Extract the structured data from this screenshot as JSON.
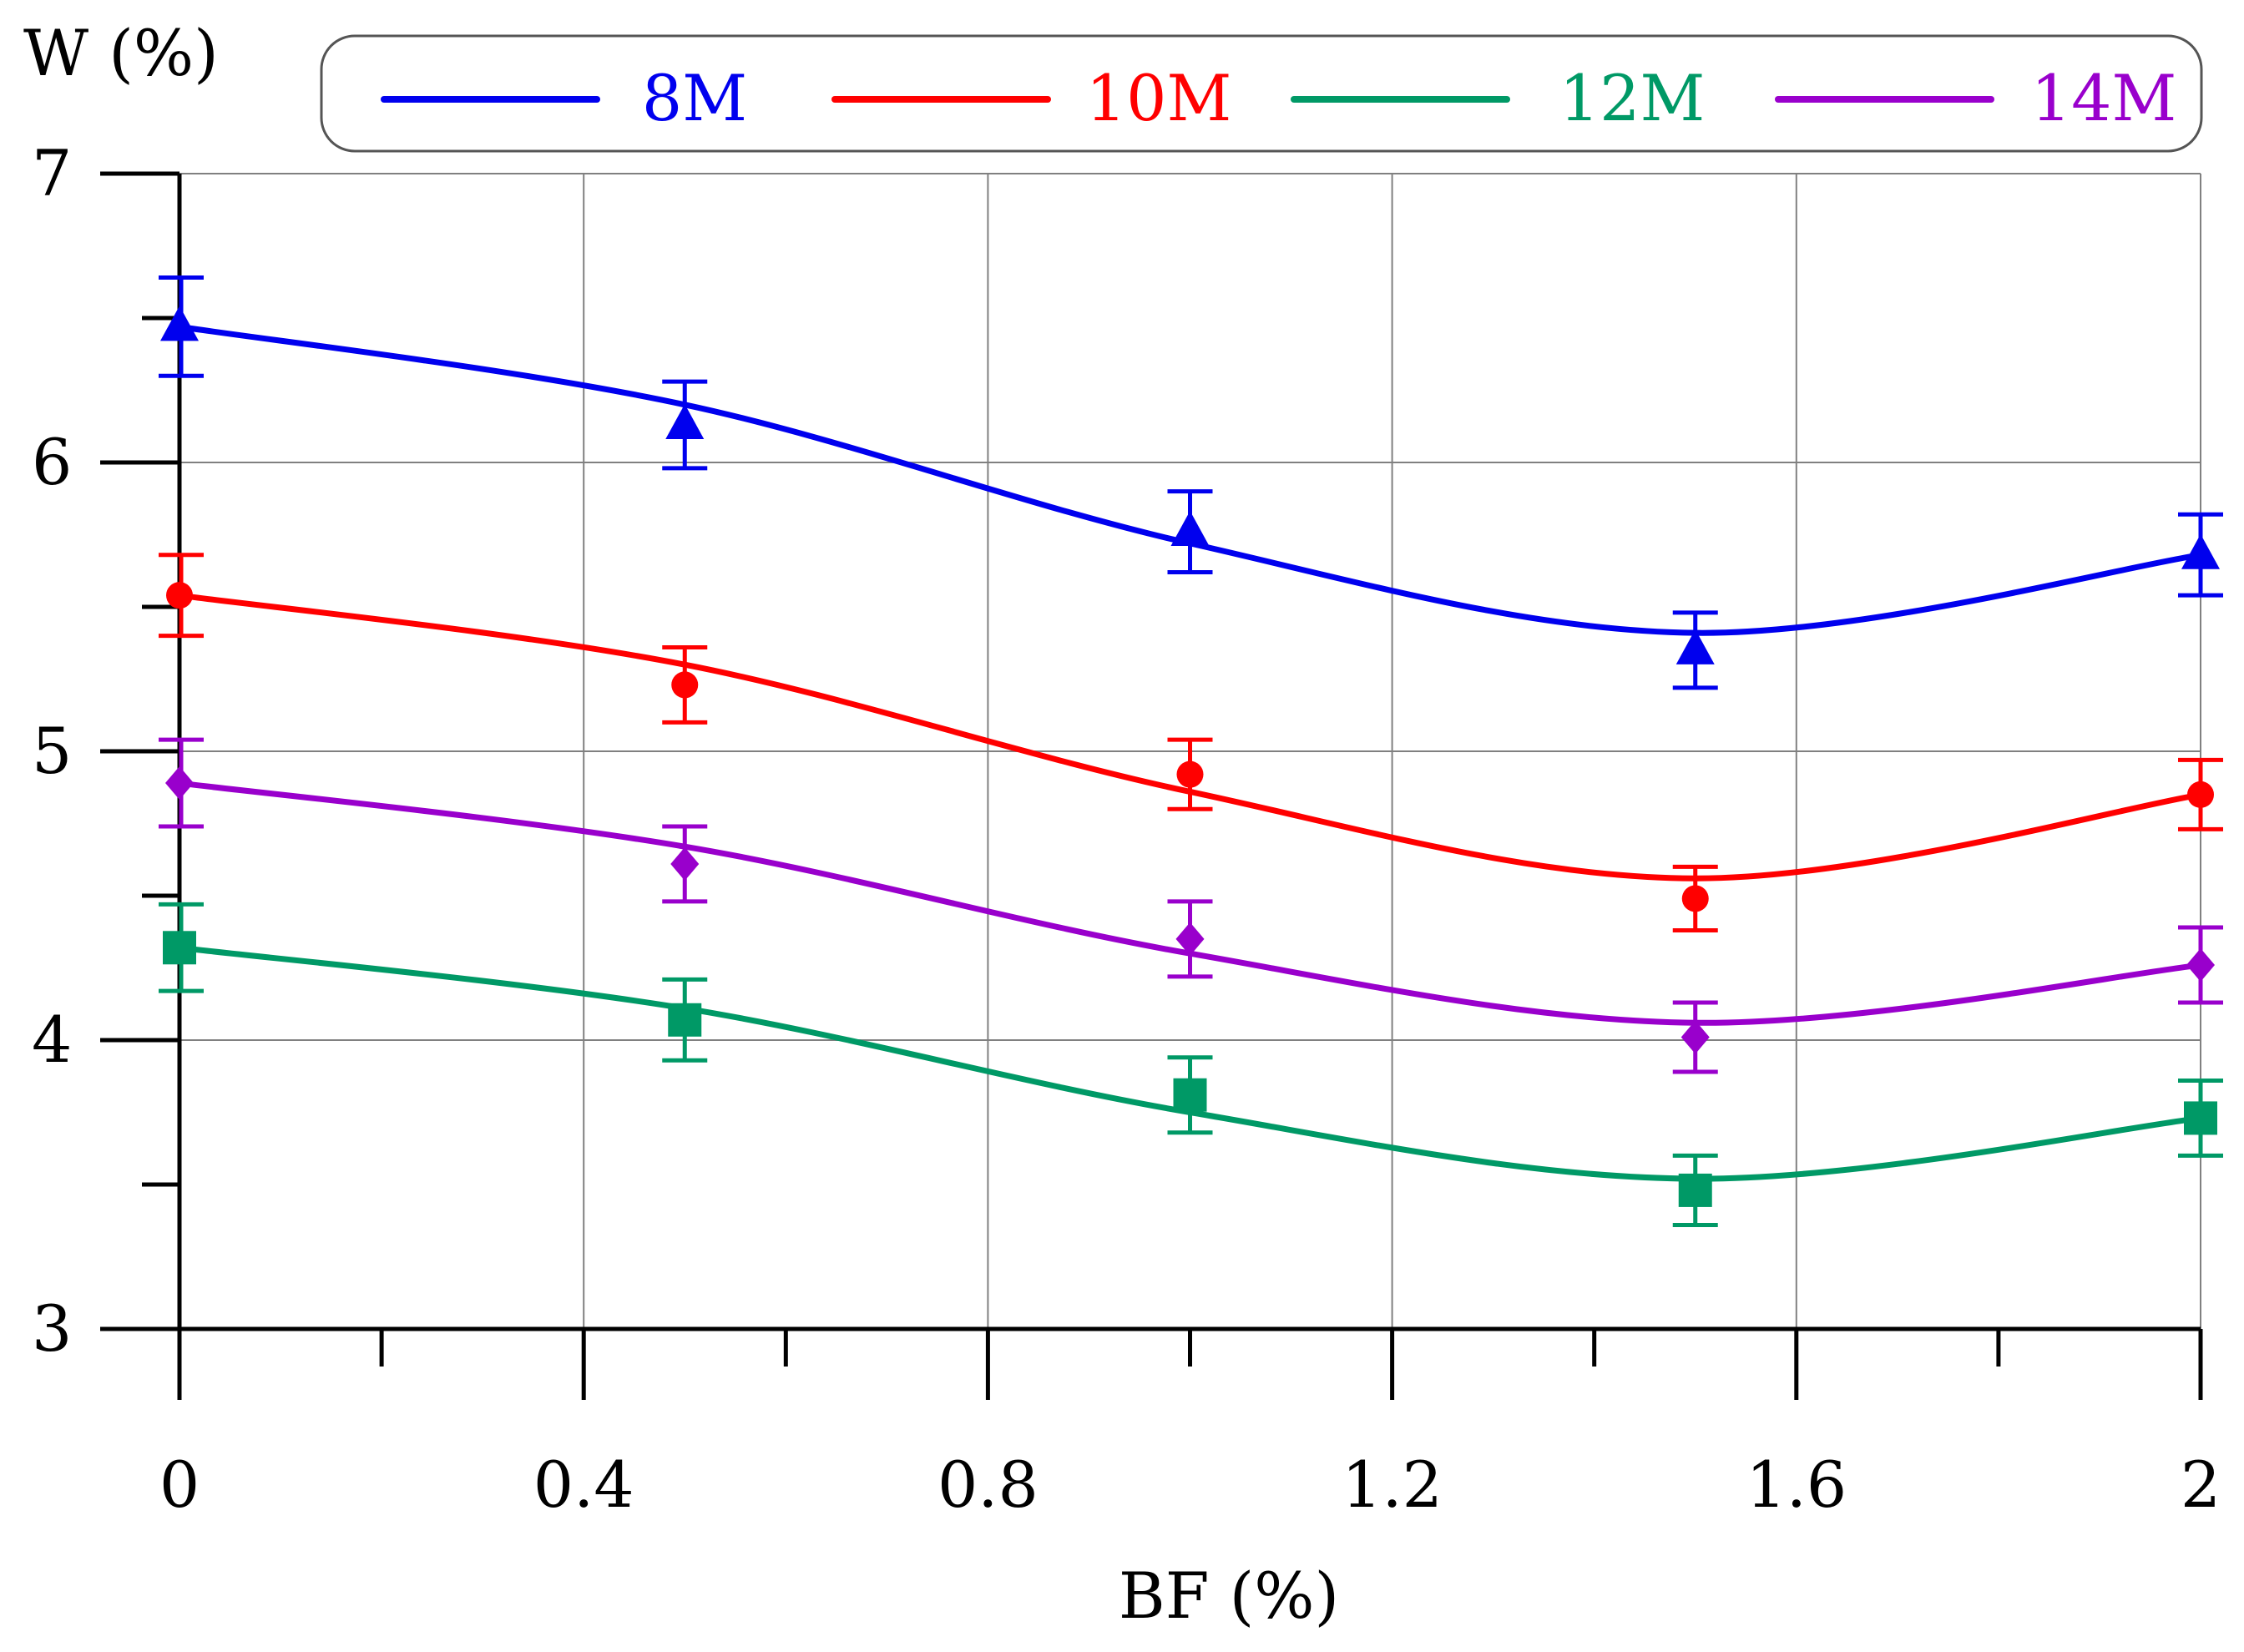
{
  "chart_data": {
    "type": "line",
    "title": "",
    "xlabel": "BF (%)",
    "ylabel": "W (%)",
    "xlim": [
      0,
      2
    ],
    "ylim": [
      3,
      7
    ],
    "grid": true,
    "legend_position": "top",
    "x_ticks": [
      0,
      0.4,
      0.8,
      1.2,
      1.6,
      2
    ],
    "x_tick_labels": [
      "0",
      "0.4",
      "0.8",
      "1.2",
      "1.6",
      "2"
    ],
    "y_ticks": [
      3,
      4,
      5,
      6,
      7
    ],
    "y_tick_labels": [
      "3",
      "4",
      "5",
      "6",
      "7"
    ],
    "x": [
      0,
      0.5,
      1.0,
      1.5,
      2.0
    ],
    "series": [
      {
        "name": "8M",
        "color": "#0000ee",
        "marker": "triangle",
        "values": [
          6.47,
          6.13,
          5.76,
          5.35,
          5.68
        ],
        "errors": [
          0.17,
          0.15,
          0.14,
          0.13,
          0.14
        ],
        "fit": [
          6.47,
          6.2,
          5.72,
          5.41,
          5.68
        ]
      },
      {
        "name": "10M",
        "color": "#ff0000",
        "marker": "circle",
        "values": [
          5.54,
          5.23,
          4.92,
          4.49,
          4.85
        ],
        "errors": [
          0.14,
          0.13,
          0.12,
          0.11,
          0.12
        ],
        "fit": [
          5.54,
          5.3,
          4.86,
          4.56,
          4.85
        ]
      },
      {
        "name": "12M",
        "color": "#009966",
        "marker": "square",
        "values": [
          4.32,
          4.07,
          3.81,
          3.48,
          3.73
        ],
        "errors": [
          0.15,
          0.14,
          0.13,
          0.12,
          0.13
        ],
        "fit": [
          4.32,
          4.11,
          3.75,
          3.52,
          3.73
        ]
      },
      {
        "name": "14M",
        "color": "#9900cc",
        "marker": "diamond",
        "values": [
          4.89,
          4.61,
          4.35,
          4.01,
          4.26
        ],
        "errors": [
          0.15,
          0.13,
          0.13,
          0.12,
          0.13
        ],
        "fit": [
          4.89,
          4.67,
          4.3,
          4.06,
          4.26
        ]
      }
    ]
  }
}
